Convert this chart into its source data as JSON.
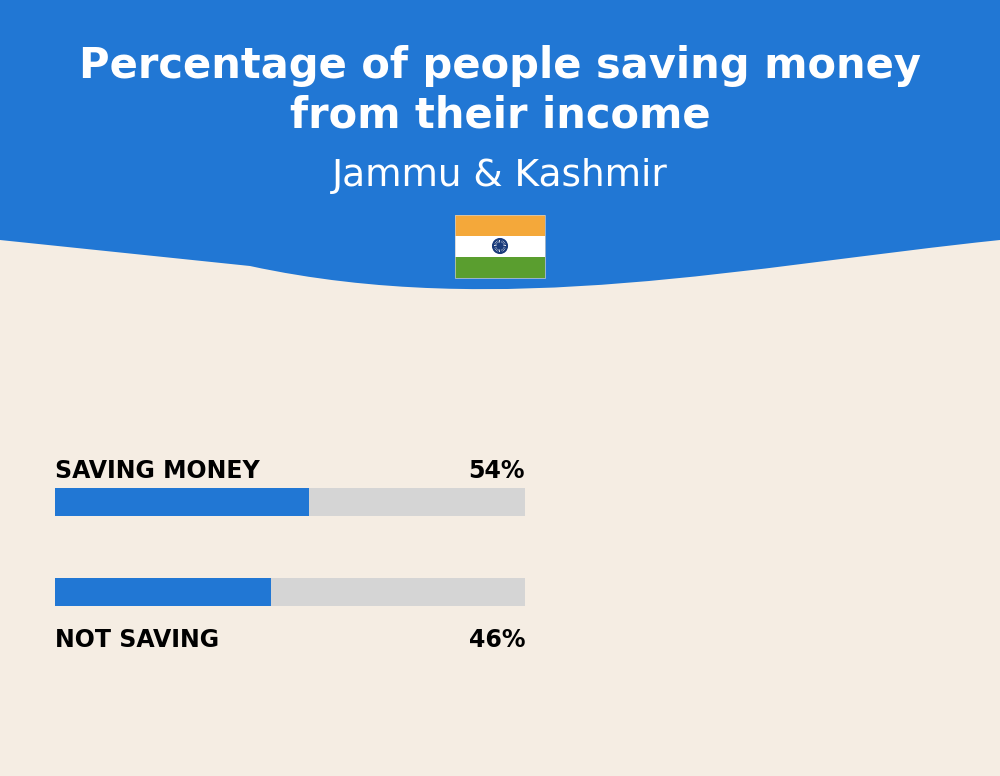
{
  "title_line1": "Percentage of people saving money",
  "title_line2": "from their income",
  "subtitle": "Jammu & Kashmir",
  "bg_top_color": "#2177D4",
  "bg_bottom_color": "#F5EDE3",
  "bar_color": "#2177D4",
  "bar_bg_color": "#D5D5D5",
  "categories": [
    "SAVING MONEY",
    "NOT SAVING"
  ],
  "values": [
    54,
    46
  ],
  "value_labels": [
    "54%",
    "46%"
  ],
  "title_fontsize": 30,
  "subtitle_fontsize": 27,
  "label_fontsize": 17,
  "value_fontsize": 17,
  "fig_width": 10.0,
  "fig_height": 7.76,
  "flag_orange": "#F4A83A",
  "flag_white": "#FFFFFF",
  "flag_green": "#5A9E2F",
  "flag_navy": "#1A3A7A"
}
